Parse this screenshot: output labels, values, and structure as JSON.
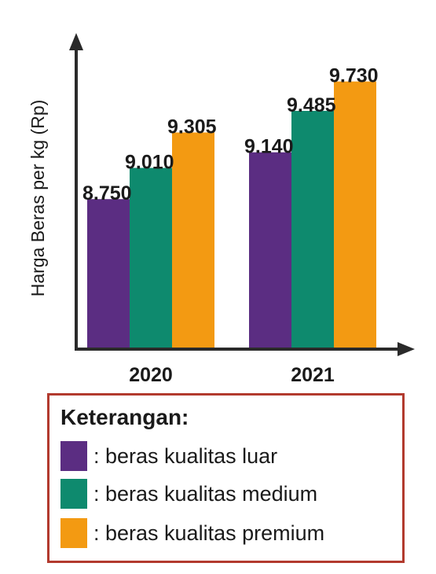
{
  "chart_data": {
    "type": "bar",
    "ylabel": "Harga Beras per kg (Rp)",
    "xlabel": "",
    "categories": [
      "2020",
      "2021"
    ],
    "series": [
      {
        "name": "beras kualitas luar",
        "color": "#5b2d82",
        "values": [
          8750,
          9140
        ],
        "labels": [
          "8.750",
          "9.140"
        ]
      },
      {
        "name": "beras kualitas medium",
        "color": "#0e8a6e",
        "values": [
          9010,
          9485
        ],
        "labels": [
          "9.010",
          "9.485"
        ]
      },
      {
        "name": "beras kualitas premium",
        "color": "#f39a12",
        "values": [
          9305,
          9730
        ],
        "labels": [
          "9.305",
          "9.730"
        ]
      }
    ],
    "grid": false,
    "legend_position": "bottom"
  },
  "legend": {
    "title": "Keterangan:",
    "items": [
      {
        "label": ": beras kualitas luar",
        "color": "#5b2d82"
      },
      {
        "label": ": beras kualitas medium",
        "color": "#0e8a6e"
      },
      {
        "label": ": beras kualitas premium",
        "color": "#f39a12"
      }
    ]
  }
}
